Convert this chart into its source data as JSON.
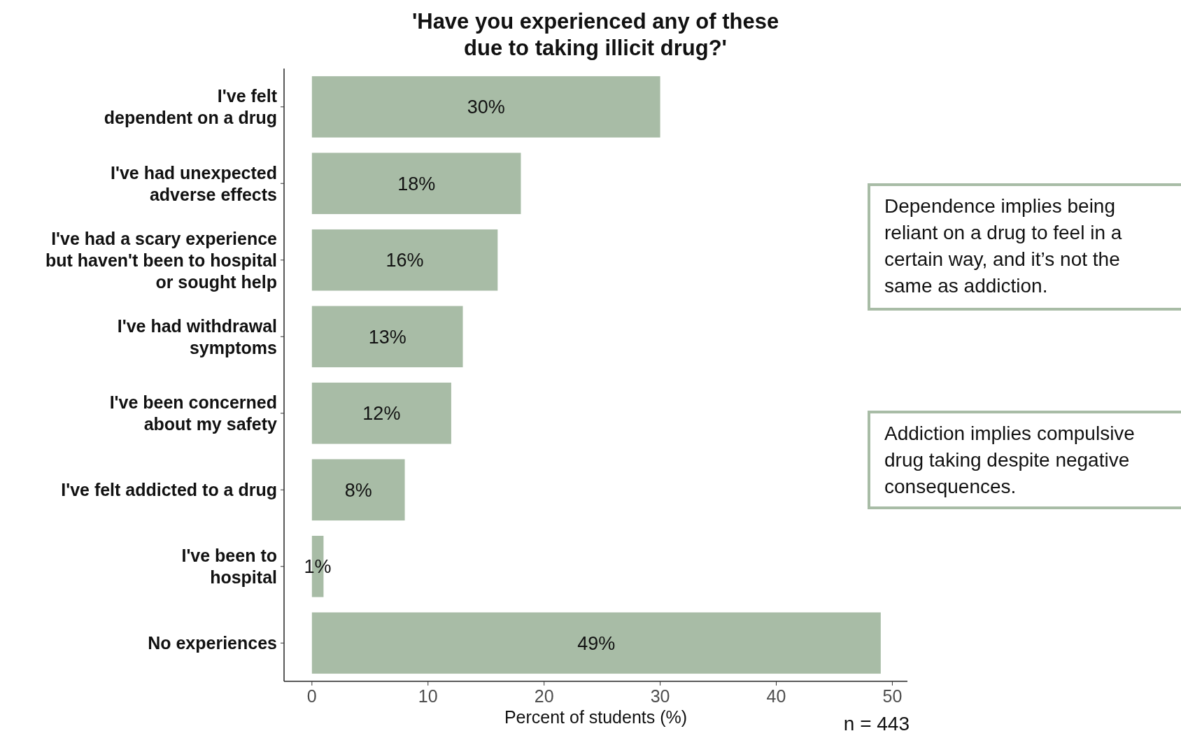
{
  "chart_data": {
    "type": "bar",
    "orientation": "horizontal",
    "title": "'Have you experienced any of these\ndue to taking illicit drug?'",
    "xlabel": "Percent of students (%)",
    "categories": [
      "I've felt\ndependent on a drug",
      "I've had unexpected\nadverse effects",
      "I've had a scary experience\nbut haven't been to hospital\nor sought help",
      "I've had withdrawal\nsymptoms",
      "I've been concerned\nabout my safety",
      "I've felt addicted to a drug",
      "I've been to\nhospital",
      "No experiences"
    ],
    "values": [
      30,
      18,
      16,
      13,
      12,
      8,
      1,
      49
    ],
    "value_labels": [
      "30%",
      "18%",
      "16%",
      "13%",
      "12%",
      "8%",
      "1%",
      "49%"
    ],
    "color": "#a8bca6",
    "xlim": [
      -2.4,
      51.3
    ],
    "xticks": [
      0,
      10,
      20,
      30,
      40,
      50
    ],
    "grid": false,
    "annotations": [
      "Dependence implies being\nreliant on a drug to feel in a\ncertain way, and it’s not the\nsame as addiction.",
      "Addiction implies compulsive\ndrug taking despite negative\nconsequences.",
      "n = 443"
    ]
  }
}
